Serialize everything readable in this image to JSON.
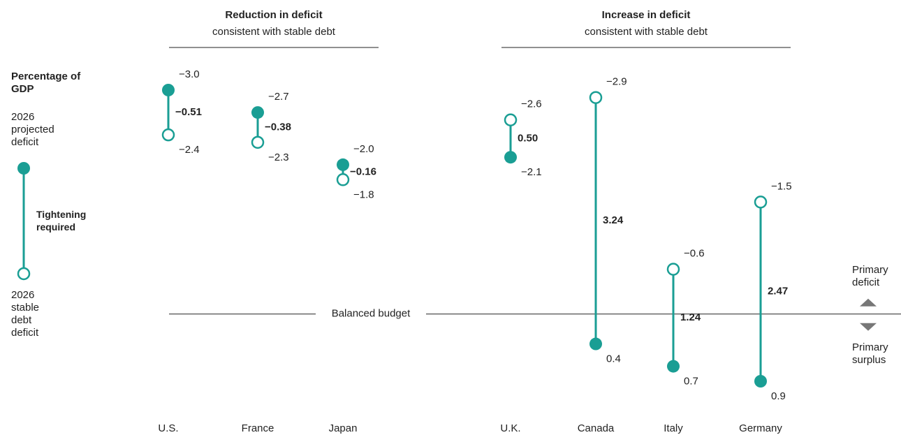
{
  "chart_data": {
    "type": "dumbbell",
    "unit_label": "Percentage of GDP",
    "groups": [
      {
        "title": "Reduction in deficit",
        "subtitle": "consistent with stable debt"
      },
      {
        "title": "Increase in deficit",
        "subtitle": "consistent with stable debt"
      }
    ],
    "categories": [
      "U.S.",
      "France",
      "Japan",
      "U.K.",
      "Canada",
      "Italy",
      "Germany"
    ],
    "series": [
      {
        "name": "2026 projected deficit",
        "color": "#1a9e94",
        "values": [
          -3.0,
          -2.7,
          -2.0,
          -2.1,
          0.4,
          0.7,
          0.9
        ],
        "value_labels": [
          "−3.0",
          "−2.7",
          "−2.0",
          "−2.1",
          "0.4",
          "0.7",
          "0.9"
        ]
      },
      {
        "name": "2026 stable debt deficit",
        "color": "#1a9e94",
        "values": [
          -2.4,
          -2.3,
          -1.8,
          -2.6,
          -2.9,
          -0.6,
          -1.5
        ],
        "value_labels": [
          "−2.4",
          "−2.3",
          "−1.8",
          "−2.6",
          "−2.9",
          "−0.6",
          "−1.5"
        ]
      }
    ],
    "differences": {
      "values": [
        -0.51,
        -0.38,
        -0.16,
        0.5,
        3.24,
        1.24,
        2.47
      ],
      "value_labels": [
        "−0.51",
        "−0.38",
        "−0.16",
        "0.50",
        "3.24",
        "1.24",
        "2.47"
      ]
    },
    "connector_label": "Tightening required",
    "baseline_label": "Balanced budget",
    "above_label": "Primary deficit",
    "below_label": "Primary surplus"
  }
}
